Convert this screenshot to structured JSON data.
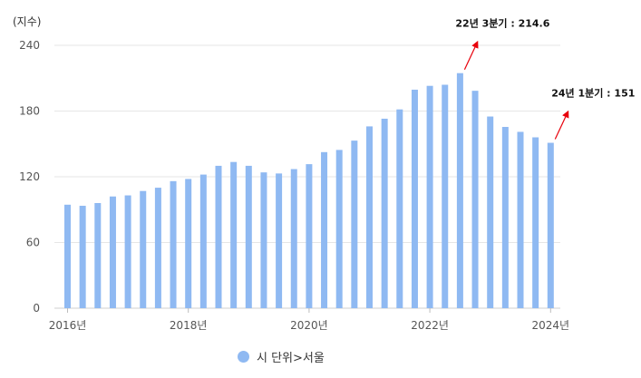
{
  "chart_data": {
    "type": "bar",
    "ylabel": "(지수)",
    "ylim": [
      0,
      240
    ],
    "yticks": [
      0,
      60,
      120,
      180,
      240
    ],
    "grid": true,
    "legend_position": "bottom",
    "x_tick_labels": [
      {
        "index": 0,
        "label": "2016년"
      },
      {
        "index": 8,
        "label": "2018년"
      },
      {
        "index": 16,
        "label": "2020년"
      },
      {
        "index": 24,
        "label": "2022년"
      },
      {
        "index": 32,
        "label": "2024년"
      }
    ],
    "series": [
      {
        "name": "시 단위>서울",
        "color": "#8fb9f2",
        "values": [
          94.5,
          93.5,
          96,
          102,
          103,
          107,
          110,
          116,
          118,
          122,
          130,
          133.5,
          130,
          124,
          123,
          127,
          131.5,
          142.5,
          144.5,
          153,
          166,
          173,
          181.5,
          199.5,
          203,
          204,
          214.6,
          198.5,
          175,
          165.5,
          161,
          156,
          151
        ]
      }
    ],
    "annotations": [
      {
        "text": "22년 3분기 : 214.6",
        "index": 26
      },
      {
        "text": "24년 1분기 : 151",
        "index": 32
      }
    ],
    "arrow_color": "#e8000b"
  }
}
